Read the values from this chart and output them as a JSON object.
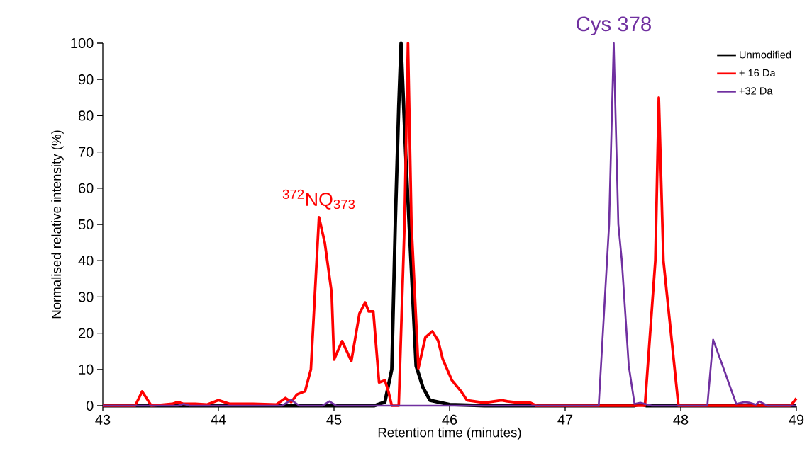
{
  "chart_data": {
    "type": "line",
    "xlabel": "Retention time (minutes)",
    "ylabel": "Normalised relative intensity (%)",
    "xlim": [
      43,
      49
    ],
    "ylim": [
      0,
      100
    ],
    "xticks": [
      43,
      44,
      45,
      46,
      47,
      48,
      49
    ],
    "yticks": [
      0,
      10,
      20,
      30,
      40,
      50,
      60,
      70,
      80,
      90,
      100
    ],
    "grid": false,
    "legend": "top right",
    "marker": "none",
    "line_style": "solid",
    "annotations": [
      {
        "text": "$^{372}$NQ$_{373}$",
        "x": 44.87,
        "y": 52
      },
      {
        "text": "Cys 378",
        "x": 47.42,
        "y": 100
      }
    ],
    "series": [
      {
        "name": "Unmodified",
        "color": "#000000",
        "x": [
          43,
          45.35,
          45.44,
          45.5,
          45.53,
          45.56,
          45.58,
          45.62,
          45.67,
          45.71,
          45.77,
          45.83,
          46.0,
          46.3,
          47.6,
          47.65,
          47.7,
          49
        ],
        "values": [
          0,
          0,
          1,
          10,
          50,
          82.6,
          100,
          69.5,
          37,
          11,
          5,
          1.5,
          0.3,
          0,
          0,
          0.5,
          0,
          0
        ]
      },
      {
        "name": "+ 16 Da",
        "color": "#ff0000",
        "x": [
          43,
          43.28,
          43.34,
          43.42,
          43.6,
          43.65,
          43.7,
          43.8,
          43.9,
          44.0,
          44.1,
          44.3,
          44.5,
          44.58,
          44.63,
          44.68,
          44.75,
          44.8,
          44.87,
          44.92,
          44.98,
          45.0,
          45.07,
          45.15,
          45.22,
          45.27,
          45.3,
          45.34,
          45.39,
          45.44,
          45.47,
          45.5,
          45.56,
          45.61,
          45.64,
          45.67,
          45.73,
          45.79,
          45.85,
          45.9,
          45.94,
          46.02,
          46.1,
          46.15,
          46.3,
          46.45,
          46.5,
          46.6,
          46.7,
          46.75,
          47.69,
          47.78,
          47.81,
          47.85,
          47.98,
          48.95,
          49
        ],
        "values": [
          0,
          0,
          3.9,
          0,
          0.5,
          1,
          0.5,
          0.5,
          0.3,
          1.5,
          0.5,
          0.5,
          0.3,
          2.1,
          1,
          3.1,
          4,
          10,
          52,
          45,
          31,
          12.7,
          17.8,
          12.3,
          25.4,
          28.5,
          26,
          26,
          6.4,
          7,
          4,
          0,
          0,
          50,
          100,
          50,
          10.3,
          18.8,
          20.5,
          18,
          12.9,
          7,
          3.9,
          1.5,
          0.8,
          1.5,
          1.2,
          0.8,
          0.8,
          0,
          0,
          40,
          85,
          40,
          0,
          0,
          2
        ]
      },
      {
        "name": "+32 Da",
        "color": "#7030a0",
        "x": [
          43,
          43.65,
          43.7,
          43.75,
          44.55,
          44.63,
          44.7,
          44.9,
          44.96,
          45.02,
          47.29,
          47.38,
          47.42,
          47.46,
          47.49,
          47.55,
          47.6,
          47.65,
          47.75,
          48.23,
          48.28,
          48.37,
          48.42,
          48.48,
          48.55,
          48.6,
          48.65,
          48.68,
          48.75,
          49
        ],
        "values": [
          0,
          0,
          0.5,
          0,
          0,
          1.6,
          0,
          0,
          1.2,
          0,
          0,
          50,
          100,
          50,
          40,
          11,
          0.5,
          0.8,
          0,
          0,
          18.2,
          10.3,
          5.8,
          0.5,
          1,
          0.8,
          0.3,
          1.2,
          0,
          0
        ]
      }
    ]
  }
}
